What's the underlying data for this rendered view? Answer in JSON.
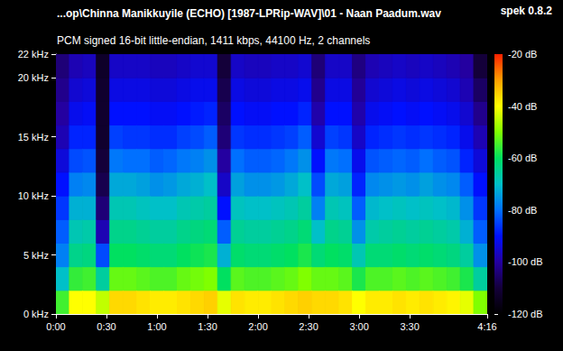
{
  "chart_data": {
    "type": "heatmap",
    "title": "...op\\Chinna Manikkuyile (ECHO) [1987-LPRip-WAV]\\01 - Naan Paadum.wav",
    "subtitle": "PCM signed 16-bit little-endian, 1411 kbps, 44100 Hz, 2 channels",
    "annotations": [
      {
        "text": "spek 0.8.2"
      }
    ],
    "xlim": [
      0,
      256
    ],
    "xticks": [
      {
        "value": 0,
        "label": "0:00"
      },
      {
        "value": 30,
        "label": "0:30"
      },
      {
        "value": 60,
        "label": "1:00"
      },
      {
        "value": 90,
        "label": "1:30"
      },
      {
        "value": 120,
        "label": "2:00"
      },
      {
        "value": 150,
        "label": "2:30"
      },
      {
        "value": 180,
        "label": "3:00"
      },
      {
        "value": 210,
        "label": "3:30"
      },
      {
        "value": 256,
        "label": "4:16"
      }
    ],
    "ylim": [
      0,
      22
    ],
    "yticks": [
      {
        "value": 0,
        "label": "0 kHz"
      },
      {
        "value": 5,
        "label": "5 kHz"
      },
      {
        "value": 10,
        "label": "10 kHz"
      },
      {
        "value": 15,
        "label": "15 kHz"
      },
      {
        "value": 20,
        "label": "20 kHz"
      },
      {
        "value": 22,
        "label": "22 kHz"
      }
    ],
    "grid": false,
    "colorbar": {
      "range": [
        -120,
        -20
      ],
      "ticks": [
        {
          "value": -20,
          "label": "-20 dB"
        },
        {
          "value": -40,
          "label": "-40 dB"
        },
        {
          "value": -60,
          "label": "-60 dB"
        },
        {
          "value": -80,
          "label": "-80 dB"
        },
        {
          "value": -100,
          "label": "-100 dB"
        },
        {
          "value": -120,
          "label": "-120 dB"
        }
      ]
    },
    "cells": {
      "t_bins": [
        0,
        8,
        16,
        24,
        32,
        40,
        48,
        56,
        64,
        72,
        80,
        88,
        96,
        104,
        112,
        120,
        128,
        136,
        144,
        152,
        160,
        168,
        176,
        184,
        192,
        200,
        208,
        216,
        224,
        232,
        240,
        248,
        256
      ],
      "f_bins": [
        0,
        2,
        4,
        6,
        8,
        10,
        12,
        14,
        16,
        18,
        20,
        22
      ],
      "values": [
        [
          -55,
          -70,
          -78,
          -82,
          -86,
          -90,
          -94,
          -98,
          -100,
          -102,
          -104
        ],
        [
          -40,
          -56,
          -64,
          -68,
          -72,
          -78,
          -84,
          -88,
          -92,
          -95,
          -98
        ],
        [
          -40,
          -55,
          -63,
          -67,
          -72,
          -77,
          -83,
          -88,
          -91,
          -94,
          -97
        ],
        [
          -45,
          -66,
          -84,
          -98,
          -104,
          -108,
          -110,
          -112,
          -112,
          -112,
          -113
        ],
        [
          -36,
          -52,
          -60,
          -64,
          -68,
          -73,
          -79,
          -85,
          -90,
          -93,
          -96
        ],
        [
          -36,
          -52,
          -60,
          -64,
          -68,
          -73,
          -80,
          -86,
          -90,
          -93,
          -96
        ],
        [
          -37,
          -53,
          -61,
          -65,
          -69,
          -74,
          -80,
          -86,
          -90,
          -93,
          -96
        ],
        [
          -38,
          -54,
          -62,
          -66,
          -70,
          -76,
          -82,
          -87,
          -91,
          -94,
          -97
        ],
        [
          -38,
          -54,
          -62,
          -66,
          -70,
          -75,
          -81,
          -87,
          -91,
          -94,
          -97
        ],
        [
          -37,
          -52,
          -60,
          -64,
          -68,
          -73,
          -79,
          -85,
          -90,
          -93,
          -96
        ],
        [
          -36,
          -51,
          -59,
          -63,
          -67,
          -72,
          -78,
          -84,
          -89,
          -92,
          -95
        ],
        [
          -35,
          -50,
          -58,
          -62,
          -66,
          -70,
          -76,
          -82,
          -88,
          -92,
          -95
        ],
        [
          -42,
          -60,
          -72,
          -82,
          -90,
          -96,
          -100,
          -104,
          -106,
          -108,
          -110
        ],
        [
          -37,
          -53,
          -61,
          -65,
          -69,
          -74,
          -80,
          -86,
          -90,
          -93,
          -96
        ],
        [
          -38,
          -54,
          -62,
          -66,
          -70,
          -76,
          -82,
          -87,
          -91,
          -94,
          -97
        ],
        [
          -38,
          -54,
          -62,
          -66,
          -70,
          -76,
          -82,
          -87,
          -91,
          -94,
          -97
        ],
        [
          -37,
          -53,
          -61,
          -65,
          -69,
          -75,
          -81,
          -86,
          -90,
          -93,
          -96
        ],
        [
          -36,
          -52,
          -60,
          -64,
          -68,
          -73,
          -79,
          -85,
          -90,
          -93,
          -96
        ],
        [
          -35,
          -50,
          -58,
          -62,
          -66,
          -70,
          -76,
          -82,
          -88,
          -92,
          -95
        ],
        [
          -36,
          -52,
          -62,
          -70,
          -78,
          -84,
          -90,
          -95,
          -99,
          -102,
          -104
        ],
        [
          -36,
          -52,
          -60,
          -64,
          -68,
          -73,
          -79,
          -85,
          -90,
          -93,
          -96
        ],
        [
          -37,
          -53,
          -61,
          -65,
          -69,
          -74,
          -80,
          -86,
          -90,
          -93,
          -96
        ],
        [
          -40,
          -58,
          -68,
          -76,
          -82,
          -88,
          -92,
          -96,
          -99,
          -101,
          -103
        ],
        [
          -38,
          -54,
          -62,
          -67,
          -71,
          -77,
          -83,
          -88,
          -92,
          -95,
          -98
        ],
        [
          -38,
          -54,
          -62,
          -66,
          -70,
          -76,
          -82,
          -87,
          -91,
          -94,
          -97
        ],
        [
          -37,
          -53,
          -61,
          -65,
          -69,
          -75,
          -81,
          -86,
          -90,
          -93,
          -96
        ],
        [
          -38,
          -54,
          -62,
          -66,
          -70,
          -76,
          -82,
          -87,
          -91,
          -94,
          -97
        ],
        [
          -37,
          -53,
          -61,
          -65,
          -69,
          -74,
          -80,
          -86,
          -90,
          -93,
          -96
        ],
        [
          -38,
          -54,
          -62,
          -66,
          -70,
          -76,
          -82,
          -87,
          -91,
          -94,
          -97
        ],
        [
          -39,
          -55,
          -63,
          -67,
          -71,
          -77,
          -83,
          -88,
          -92,
          -95,
          -98
        ],
        [
          -42,
          -58,
          -66,
          -72,
          -76,
          -82,
          -88,
          -92,
          -95,
          -98,
          -100
        ],
        [
          -50,
          -66,
          -76,
          -82,
          -86,
          -90,
          -94,
          -98,
          -102,
          -106,
          -110
        ]
      ]
    }
  }
}
